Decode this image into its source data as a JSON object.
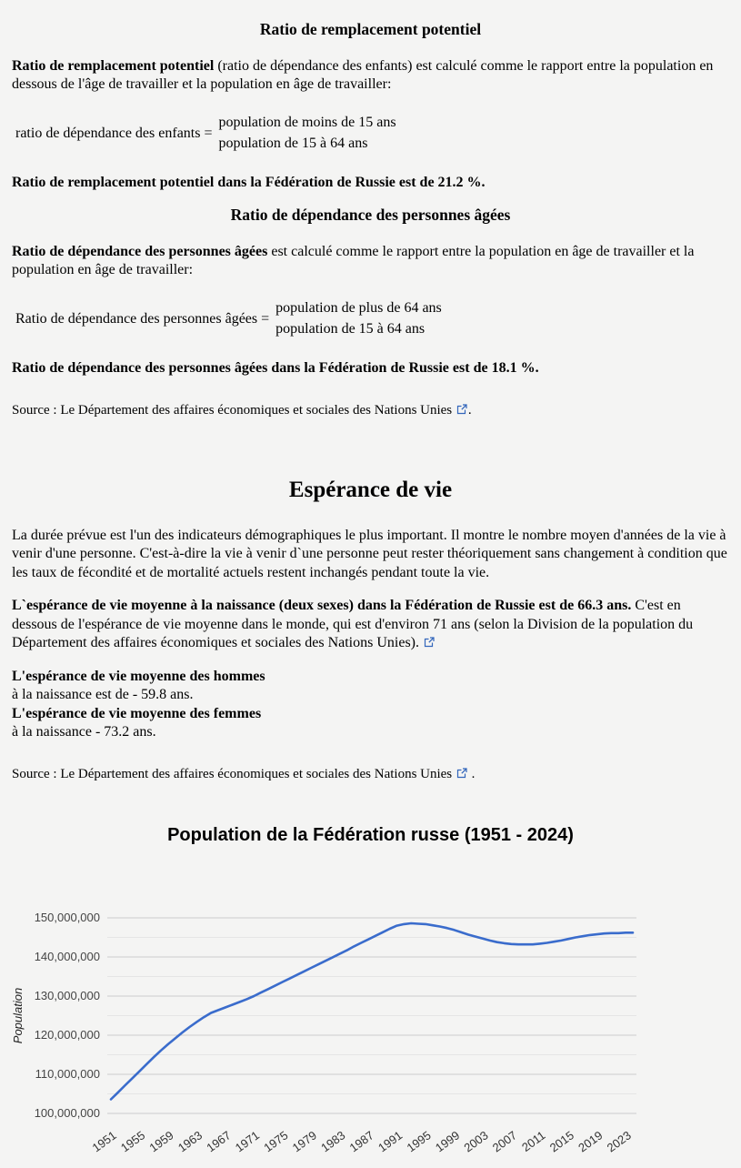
{
  "replacement": {
    "heading": "Ratio de remplacement potentiel",
    "def_bold": "Ratio de remplacement potentiel",
    "def_rest": " (ratio de dépendance des enfants) est calculé comme le rapport entre la population en dessous de l'âge de travailler et la population en âge de travailler:",
    "formula_label": "ratio de dépendance des enfants =",
    "formula_numerator": "population de moins de 15 ans",
    "formula_denominator": "population de 15 à 64 ans",
    "result": "Ratio de remplacement potentiel dans la Fédération de Russie est de 21.2 %."
  },
  "elderly": {
    "heading": "Ratio de dépendance des personnes âgées",
    "def_bold": "Ratio de dépendance des personnes âgées",
    "def_rest": " est calculé comme le rapport entre la population en âge de travailler et la population en âge de travailler:",
    "formula_label": "Ratio de dépendance des personnes âgées =",
    "formula_numerator": "population de plus de 64 ans",
    "formula_denominator": "population de 15 à 64 ans",
    "result": "Ratio de dépendance des personnes âgées dans la Fédération de Russie est de 18.1 %."
  },
  "source1": {
    "text": "Source : Le Département des affaires économiques et sociales des Nations Unies",
    "suffix": "."
  },
  "life": {
    "heading": "Espérance de vie",
    "intro": "La durée prévue est l'un des indicateurs démographiques le plus important. Il montre le nombre moyen d'années de la vie à venir d'une personne. C'est-à-dire la vie à venir d`une personne peut rester théoriquement sans changement à condition que les taux de fécondité et de mortalité actuels restent inchangés pendant toute la vie.",
    "avg_bold": "L`espérance de vie moyenne à la naissance (deux sexes) dans la Fédération de Russie est de 66.3 ans.",
    "avg_rest": "C'est en dessous de l'espérance de vie moyenne dans le monde, qui est d'environ 71 ans (selon la Division de la population du Département des affaires économiques et sociales des Nations Unies).",
    "men_bold": "L'espérance de vie moyenne des hommes",
    "men_rest": " à la naissance est de - 59.8 ans.",
    "women_bold": "L'espérance de vie moyenne des femmes",
    "women_rest": " à la naissance - 73.2 ans.",
    "source_text": "Source : Le Département des affaires économiques et sociales des Nations Unies",
    "source_suffix": " ."
  },
  "chart_data": {
    "type": "line",
    "title": "Population de la Fédération russe (1951 - 2024)",
    "xlabel": "",
    "ylabel": "Population",
    "ylim": [
      100000000,
      150000000
    ],
    "ytick_step": 10000000,
    "yminor_step": 5000000,
    "grid": true,
    "legend": "none",
    "line_color": "#3a6ccc",
    "major_grid_color": "#cccccc",
    "minor_grid_color": "#e5e5e5",
    "xticks": [
      1951,
      1955,
      1959,
      1963,
      1967,
      1971,
      1975,
      1979,
      1983,
      1987,
      1991,
      1995,
      1999,
      2003,
      2007,
      2011,
      2015,
      2019,
      2023
    ],
    "x": [
      1951,
      1952,
      1953,
      1954,
      1955,
      1956,
      1957,
      1958,
      1959,
      1960,
      1961,
      1962,
      1963,
      1964,
      1965,
      1966,
      1967,
      1968,
      1969,
      1970,
      1971,
      1972,
      1973,
      1974,
      1975,
      1976,
      1977,
      1978,
      1979,
      1980,
      1981,
      1982,
      1983,
      1984,
      1985,
      1986,
      1987,
      1988,
      1989,
      1990,
      1991,
      1992,
      1993,
      1994,
      1995,
      1996,
      1997,
      1998,
      1999,
      2000,
      2001,
      2002,
      2003,
      2004,
      2005,
      2006,
      2007,
      2008,
      2009,
      2010,
      2011,
      2012,
      2013,
      2014,
      2015,
      2016,
      2017,
      2018,
      2019,
      2020,
      2021,
      2022,
      2023,
      2024
    ],
    "values": [
      103600000,
      105400000,
      107200000,
      109000000,
      110800000,
      112600000,
      114400000,
      116100000,
      117700000,
      119200000,
      120700000,
      122100000,
      123400000,
      124600000,
      125700000,
      126400000,
      127100000,
      127800000,
      128500000,
      129200000,
      130000000,
      130900000,
      131800000,
      132700000,
      133600000,
      134500000,
      135400000,
      136300000,
      137200000,
      138100000,
      139000000,
      139900000,
      140800000,
      141700000,
      142700000,
      143600000,
      144500000,
      145400000,
      146300000,
      147200000,
      148000000,
      148400000,
      148600000,
      148500000,
      148400000,
      148100000,
      147800000,
      147400000,
      146900000,
      146300000,
      145700000,
      145200000,
      144700000,
      144200000,
      143800000,
      143500000,
      143300000,
      143200000,
      143200000,
      143200000,
      143400000,
      143600000,
      143900000,
      144200000,
      144600000,
      145000000,
      145300000,
      145600000,
      145800000,
      146000000,
      146100000,
      146100000,
      146200000,
      146200000
    ]
  }
}
